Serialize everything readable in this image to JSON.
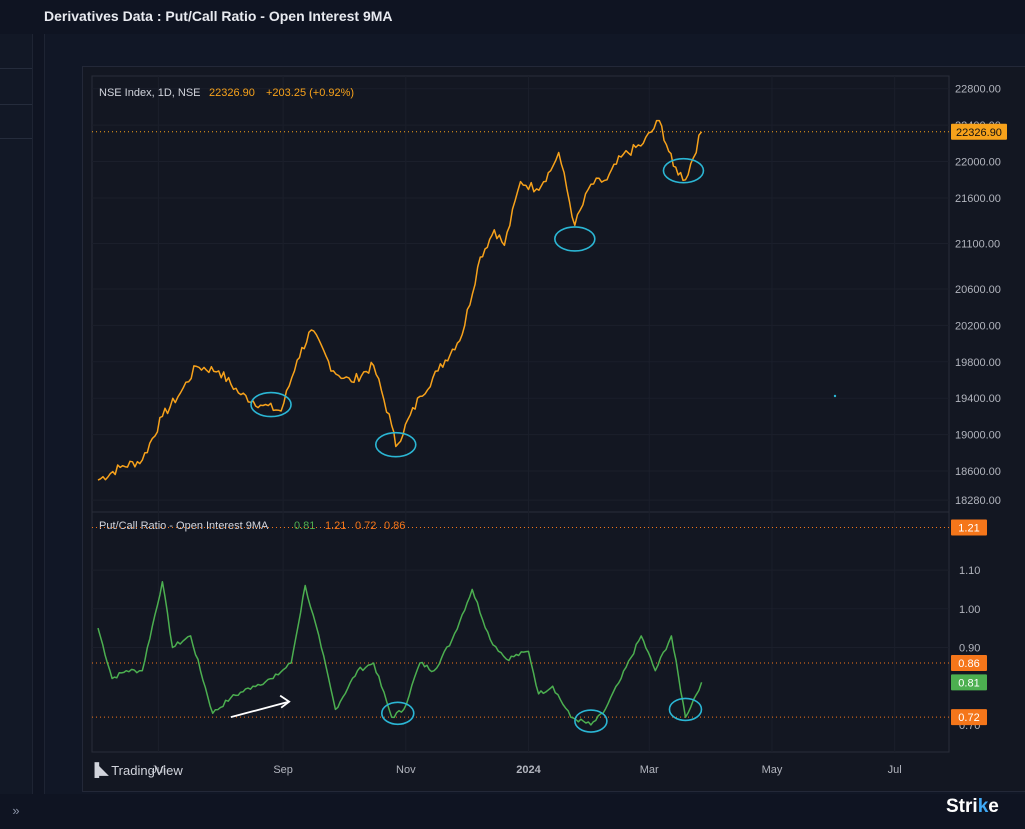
{
  "page": {
    "title": "Derivatives Data : Put/Call Ratio - Open Interest 9MA"
  },
  "footer": {
    "tradingview_label": "TradingView",
    "brand_prefix": "Stri",
    "brand_accent": "k",
    "brand_suffix": "e"
  },
  "colors": {
    "price": "#f7a21b",
    "pcr": "#4caf50",
    "orange_tag": "#f5761a",
    "green_tag": "#4caf50",
    "annotation": "#2bb6d4"
  },
  "chart_data": [
    {
      "type": "line",
      "legend": {
        "name": "NSE Index, 1D, NSE",
        "last": "22326.90",
        "change": "+203.25 (+0.92%)"
      },
      "x_ticks": [
        "Jul",
        "Sep",
        "Nov",
        "2024",
        "Mar",
        "May",
        "Jul"
      ],
      "y_ticks": [
        22800,
        22400,
        22000,
        21600,
        21100,
        20600,
        20200,
        19800,
        19400,
        19000,
        18600,
        18280
      ],
      "y_tick_labels": [
        "22800.00",
        "22400.00",
        "22000.00",
        "21600.00",
        "21100.00",
        "20600.00",
        "20200.00",
        "19800.00",
        "19400.00",
        "19000.00",
        "18600.00",
        "18280.00"
      ],
      "ylim": [
        18150,
        22940
      ],
      "last_value_label": "22326.90",
      "x": [
        "2023-06-01",
        "2023-06-12",
        "2023-06-23",
        "2023-07-03",
        "2023-07-12",
        "2023-07-20",
        "2023-07-31",
        "2023-08-11",
        "2023-08-22",
        "2023-08-31",
        "2023-09-08",
        "2023-09-15",
        "2023-09-26",
        "2023-10-05",
        "2023-10-16",
        "2023-10-25",
        "2023-10-27",
        "2023-11-08",
        "2023-11-17",
        "2023-11-29",
        "2023-12-08",
        "2023-12-15",
        "2023-12-20",
        "2023-12-28",
        "2024-01-05",
        "2024-01-12",
        "2024-01-16",
        "2024-01-24",
        "2024-02-01",
        "2024-02-09",
        "2024-02-16",
        "2024-02-27",
        "2024-03-06",
        "2024-03-13",
        "2024-03-19",
        "2024-03-27"
      ],
      "series": [
        {
          "values": [
            18500,
            18640,
            18720,
            19200,
            19460,
            19750,
            19700,
            19440,
            19320,
            19260,
            19820,
            20150,
            19700,
            19580,
            19760,
            19100,
            18870,
            19420,
            19700,
            20100,
            20950,
            21250,
            21080,
            21780,
            21700,
            21900,
            22100,
            21300,
            21750,
            21800,
            22050,
            22200,
            22450,
            21950,
            21800,
            22326.9
          ]
        }
      ],
      "annotations": [
        {
          "x": "2023-08-26",
          "y": 19330
        },
        {
          "x": "2023-10-27",
          "y": 18890
        },
        {
          "x": "2024-01-24",
          "y": 21150
        },
        {
          "x": "2024-03-18",
          "y": 21900
        }
      ]
    },
    {
      "type": "line",
      "legend": {
        "name": "Put/Call Ratio - Open Interest 9MA",
        "values": [
          "0.81",
          "1.21",
          "0.72",
          "0.86"
        ]
      },
      "y_ticks": [
        1.1,
        1.0,
        0.9
      ],
      "y_tick_labels": [
        "1.10",
        "1.00",
        "0.90"
      ],
      "partially_hidden_tick": "0.70",
      "ylim": [
        0.63,
        1.25
      ],
      "levels": [
        {
          "value": 1.21,
          "label": "1.21",
          "tag": "orange"
        },
        {
          "value": 0.86,
          "label": "0.86",
          "tag": "orange"
        },
        {
          "value": 0.81,
          "label": "0.81",
          "tag": "green"
        },
        {
          "value": 0.72,
          "label": "0.72",
          "tag": "orange"
        }
      ],
      "x": [
        "2023-06-01",
        "2023-06-08",
        "2023-06-15",
        "2023-06-23",
        "2023-07-03",
        "2023-07-08",
        "2023-07-17",
        "2023-07-28",
        "2023-08-06",
        "2023-08-17",
        "2023-08-27",
        "2023-09-05",
        "2023-09-12",
        "2023-09-20",
        "2023-09-27",
        "2023-10-08",
        "2023-10-16",
        "2023-10-25",
        "2023-10-31",
        "2023-11-08",
        "2023-11-15",
        "2023-11-24",
        "2023-12-04",
        "2023-12-13",
        "2023-12-21",
        "2024-01-01",
        "2024-01-06",
        "2024-01-13",
        "2024-01-22",
        "2024-02-01",
        "2024-02-07",
        "2024-02-16",
        "2024-02-26",
        "2024-03-04",
        "2024-03-12",
        "2024-03-19",
        "2024-03-27"
      ],
      "series": [
        {
          "values": [
            0.95,
            0.82,
            0.84,
            0.84,
            1.07,
            0.9,
            0.93,
            0.73,
            0.77,
            0.8,
            0.82,
            0.86,
            1.06,
            0.9,
            0.74,
            0.84,
            0.86,
            0.72,
            0.74,
            0.86,
            0.84,
            0.92,
            1.05,
            0.92,
            0.87,
            0.89,
            0.78,
            0.8,
            0.72,
            0.7,
            0.73,
            0.82,
            0.93,
            0.84,
            0.93,
            0.72,
            0.81
          ]
        }
      ],
      "annotations": [
        {
          "x": "2023-10-28",
          "y": 0.73
        },
        {
          "x": "2024-02-01",
          "y": 0.71
        },
        {
          "x": "2024-03-19",
          "y": 0.74
        }
      ],
      "arrow": {
        "from": {
          "x": "2023-08-06",
          "y": 0.72
        },
        "to": {
          "x": "2023-09-04",
          "y": 0.76
        }
      }
    }
  ]
}
